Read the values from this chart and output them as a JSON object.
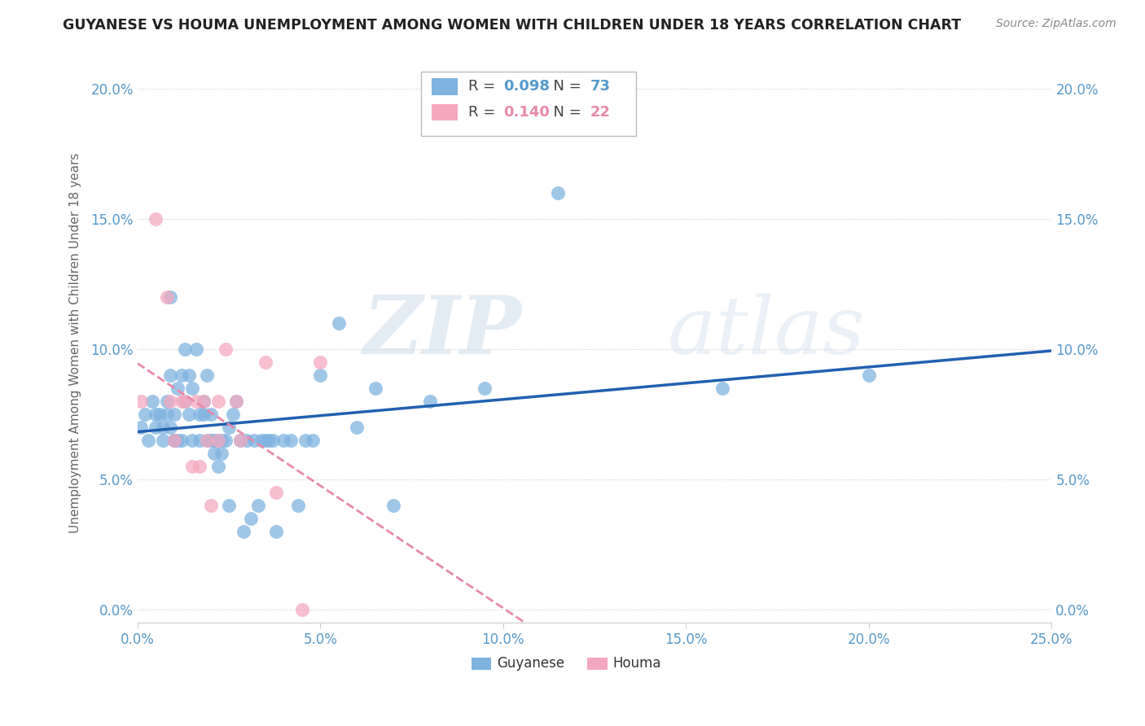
{
  "title": "GUYANESE VS HOUMA UNEMPLOYMENT AMONG WOMEN WITH CHILDREN UNDER 18 YEARS CORRELATION CHART",
  "source": "Source: ZipAtlas.com",
  "ylabel": "Unemployment Among Women with Children Under 18 years",
  "xlim": [
    0.0,
    0.25
  ],
  "ylim": [
    -0.005,
    0.21
  ],
  "x_ticks": [
    0.0,
    0.05,
    0.1,
    0.15,
    0.2,
    0.25
  ],
  "y_ticks": [
    0.0,
    0.05,
    0.1,
    0.15,
    0.2
  ],
  "guyanese_color": "#7fb3e0",
  "houma_color": "#f4a8c0",
  "guyanese_line_color": "#2060b0",
  "houma_line_color": "#e888aa",
  "R_guyanese": "0.098",
  "N_guyanese": "73",
  "R_houma": "0.140",
  "N_houma": "22",
  "guyanese_x": [
    0.001,
    0.002,
    0.003,
    0.004,
    0.005,
    0.005,
    0.006,
    0.007,
    0.007,
    0.008,
    0.008,
    0.009,
    0.009,
    0.009,
    0.01,
    0.01,
    0.01,
    0.011,
    0.011,
    0.012,
    0.012,
    0.013,
    0.013,
    0.014,
    0.014,
    0.015,
    0.015,
    0.016,
    0.017,
    0.017,
    0.018,
    0.018,
    0.019,
    0.019,
    0.02,
    0.02,
    0.021,
    0.021,
    0.022,
    0.022,
    0.023,
    0.023,
    0.024,
    0.025,
    0.025,
    0.026,
    0.027,
    0.028,
    0.029,
    0.03,
    0.031,
    0.032,
    0.033,
    0.034,
    0.035,
    0.036,
    0.037,
    0.038,
    0.04,
    0.042,
    0.044,
    0.046,
    0.048,
    0.05,
    0.055,
    0.06,
    0.065,
    0.07,
    0.08,
    0.095,
    0.115,
    0.16,
    0.2
  ],
  "guyanese_y": [
    0.07,
    0.075,
    0.065,
    0.08,
    0.07,
    0.075,
    0.075,
    0.07,
    0.065,
    0.08,
    0.075,
    0.12,
    0.09,
    0.07,
    0.075,
    0.065,
    0.065,
    0.085,
    0.065,
    0.09,
    0.065,
    0.1,
    0.08,
    0.075,
    0.09,
    0.085,
    0.065,
    0.1,
    0.065,
    0.075,
    0.08,
    0.075,
    0.09,
    0.065,
    0.065,
    0.075,
    0.06,
    0.065,
    0.065,
    0.055,
    0.06,
    0.065,
    0.065,
    0.07,
    0.04,
    0.075,
    0.08,
    0.065,
    0.03,
    0.065,
    0.035,
    0.065,
    0.04,
    0.065,
    0.065,
    0.065,
    0.065,
    0.03,
    0.065,
    0.065,
    0.04,
    0.065,
    0.065,
    0.09,
    0.11,
    0.07,
    0.085,
    0.04,
    0.08,
    0.085,
    0.16,
    0.085,
    0.09
  ],
  "houma_x": [
    0.001,
    0.005,
    0.008,
    0.009,
    0.01,
    0.012,
    0.013,
    0.015,
    0.016,
    0.017,
    0.018,
    0.019,
    0.02,
    0.022,
    0.022,
    0.024,
    0.027,
    0.028,
    0.035,
    0.038,
    0.045,
    0.05
  ],
  "houma_y": [
    0.08,
    0.15,
    0.12,
    0.08,
    0.065,
    0.08,
    0.08,
    0.055,
    0.08,
    0.055,
    0.08,
    0.065,
    0.04,
    0.08,
    0.065,
    0.1,
    0.08,
    0.065,
    0.095,
    0.045,
    0.0,
    0.095
  ],
  "watermark_zip": "ZIP",
  "watermark_atlas": "atlas",
  "background_color": "#ffffff",
  "grid_color": "#cccccc",
  "tick_color": "#5599cc",
  "spine_color": "#cccccc"
}
